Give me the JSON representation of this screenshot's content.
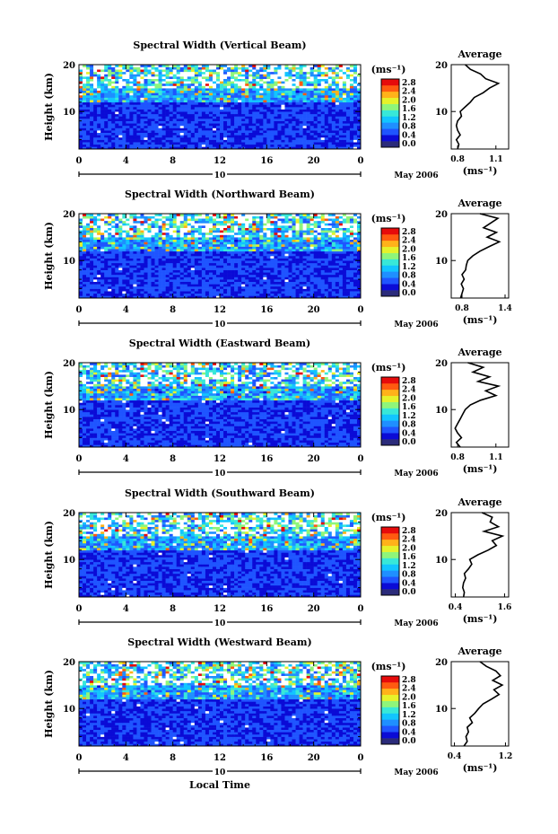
{
  "x_label": "Local Time",
  "day_marker": "10",
  "month_label": "May 2006",
  "colorbar_unit": "(ms⁻¹)",
  "colorbar_ticks": [
    "0.0",
    "0.4",
    "0.8",
    "1.2",
    "1.6",
    "2.0",
    "2.4",
    "2.8"
  ],
  "colorbar_colors": [
    "#2b2b7a",
    "#0b0bd6",
    "#1f55ff",
    "#1f8fff",
    "#12c5ff",
    "#38e8d8",
    "#8ff57a",
    "#e6f22a",
    "#ffb21a",
    "#ff5a10",
    "#e60b0b"
  ],
  "time_ticks": [
    "0",
    "4",
    "8",
    "12",
    "16",
    "20",
    "0"
  ],
  "height_label": "Height (km)",
  "height_ticks": [
    "20",
    "10"
  ],
  "avg_title": "Average",
  "avg_unit": "(ms⁻¹)",
  "chart_data": [
    {
      "type": "heatmap",
      "title": "Spectral Width (Vertical Beam)",
      "ylabel": "Height (km)",
      "xlabel": "Local Time",
      "x_ticks": [
        "0",
        "4",
        "8",
        "12",
        "16",
        "20",
        "0"
      ],
      "ylim": [
        2,
        20
      ],
      "value_unit": "(ms⁻¹)",
      "value_range": [
        0.0,
        2.8
      ],
      "average": {
        "title": "Average",
        "xlabel": "(ms⁻¹)",
        "x_ticks": [
          "0.8",
          "1.1"
        ],
        "xlim": [
          0.75,
          1.2
        ],
        "heights": [
          2,
          3,
          4,
          5,
          6,
          7,
          8,
          9,
          10,
          11,
          12,
          13,
          14,
          15,
          16,
          17,
          18,
          19,
          20
        ],
        "values": [
          0.8,
          0.81,
          0.79,
          0.82,
          0.8,
          0.79,
          0.8,
          0.83,
          0.82,
          0.86,
          0.9,
          0.93,
          1.0,
          1.05,
          1.12,
          1.02,
          0.98,
          0.9,
          0.86
        ]
      }
    },
    {
      "type": "heatmap",
      "title": "Spectral Width (Northward Beam)",
      "ylabel": "Height (km)",
      "xlabel": "Local Time",
      "x_ticks": [
        "0",
        "4",
        "8",
        "12",
        "16",
        "20",
        "0"
      ],
      "ylim": [
        2,
        20
      ],
      "value_unit": "(ms⁻¹)",
      "value_range": [
        0.0,
        2.8
      ],
      "average": {
        "title": "Average",
        "xlabel": "(ms⁻¹)",
        "x_ticks": [
          "0.8",
          "1.4"
        ],
        "xlim": [
          0.65,
          1.45
        ],
        "heights": [
          2,
          3,
          4,
          5,
          6,
          7,
          8,
          9,
          10,
          11,
          12,
          13,
          14,
          15,
          16,
          17,
          18,
          19,
          20
        ],
        "values": [
          0.78,
          0.8,
          0.82,
          0.79,
          0.83,
          0.8,
          0.85,
          0.86,
          0.88,
          0.95,
          1.05,
          1.18,
          1.32,
          1.15,
          1.28,
          1.1,
          1.2,
          1.3,
          1.05
        ]
      }
    },
    {
      "type": "heatmap",
      "title": "Spectral Width (Eastward Beam)",
      "ylabel": "Height (km)",
      "xlabel": "Local Time",
      "x_ticks": [
        "0",
        "4",
        "8",
        "12",
        "16",
        "20",
        "0"
      ],
      "ylim": [
        2,
        20
      ],
      "value_unit": "(ms⁻¹)",
      "value_range": [
        0.0,
        2.8
      ],
      "average": {
        "title": "Average",
        "xlabel": "(ms⁻¹)",
        "x_ticks": [
          "0.8",
          "1.1"
        ],
        "xlim": [
          0.75,
          1.2
        ],
        "heights": [
          2,
          3,
          4,
          5,
          6,
          7,
          8,
          9,
          10,
          11,
          12,
          13,
          14,
          15,
          16,
          17,
          18,
          19,
          20
        ],
        "values": [
          0.82,
          0.79,
          0.83,
          0.8,
          0.78,
          0.8,
          0.82,
          0.84,
          0.86,
          0.9,
          0.98,
          1.1,
          1.02,
          1.12,
          0.96,
          1.05,
          0.92,
          1.0,
          0.88
        ]
      }
    },
    {
      "type": "heatmap",
      "title": "Spectral Width (Southward Beam)",
      "ylabel": "Height (km)",
      "xlabel": "Local Time",
      "x_ticks": [
        "0",
        "4",
        "8",
        "12",
        "16",
        "20",
        "0"
      ],
      "ylim": [
        2,
        20
      ],
      "value_unit": "(ms⁻¹)",
      "value_range": [
        0.0,
        2.8
      ],
      "average": {
        "title": "Average",
        "xlabel": "(ms⁻¹)",
        "x_ticks": [
          "0.4",
          "1.6"
        ],
        "xlim": [
          0.3,
          1.7
        ],
        "heights": [
          2,
          3,
          4,
          5,
          6,
          7,
          8,
          9,
          10,
          11,
          12,
          13,
          14,
          15,
          16,
          17,
          18,
          19,
          20
        ],
        "values": [
          0.6,
          0.62,
          0.58,
          0.6,
          0.65,
          0.62,
          0.72,
          0.8,
          0.75,
          0.95,
          1.2,
          1.4,
          1.3,
          1.55,
          1.1,
          1.45,
          1.25,
          1.3,
          1.05
        ]
      }
    },
    {
      "type": "heatmap",
      "title": "Spectral Width (Westward Beam)",
      "ylabel": "Height (km)",
      "xlabel": "Local Time",
      "x_ticks": [
        "0",
        "4",
        "8",
        "12",
        "16",
        "20",
        "0"
      ],
      "ylim": [
        2,
        20
      ],
      "value_unit": "(ms⁻¹)",
      "value_range": [
        0.0,
        2.8
      ],
      "average": {
        "title": "Average",
        "xlabel": "(ms⁻¹)",
        "x_ticks": [
          "0.4",
          "1.2"
        ],
        "xlim": [
          0.35,
          1.25
        ],
        "heights": [
          2,
          3,
          4,
          5,
          6,
          7,
          8,
          9,
          10,
          11,
          12,
          13,
          14,
          15,
          16,
          17,
          18,
          19,
          20
        ],
        "values": [
          0.55,
          0.6,
          0.58,
          0.62,
          0.6,
          0.68,
          0.64,
          0.72,
          0.78,
          0.85,
          0.98,
          1.1,
          1.02,
          1.15,
          1.0,
          1.12,
          1.05,
          0.9,
          0.8
        ]
      }
    }
  ]
}
